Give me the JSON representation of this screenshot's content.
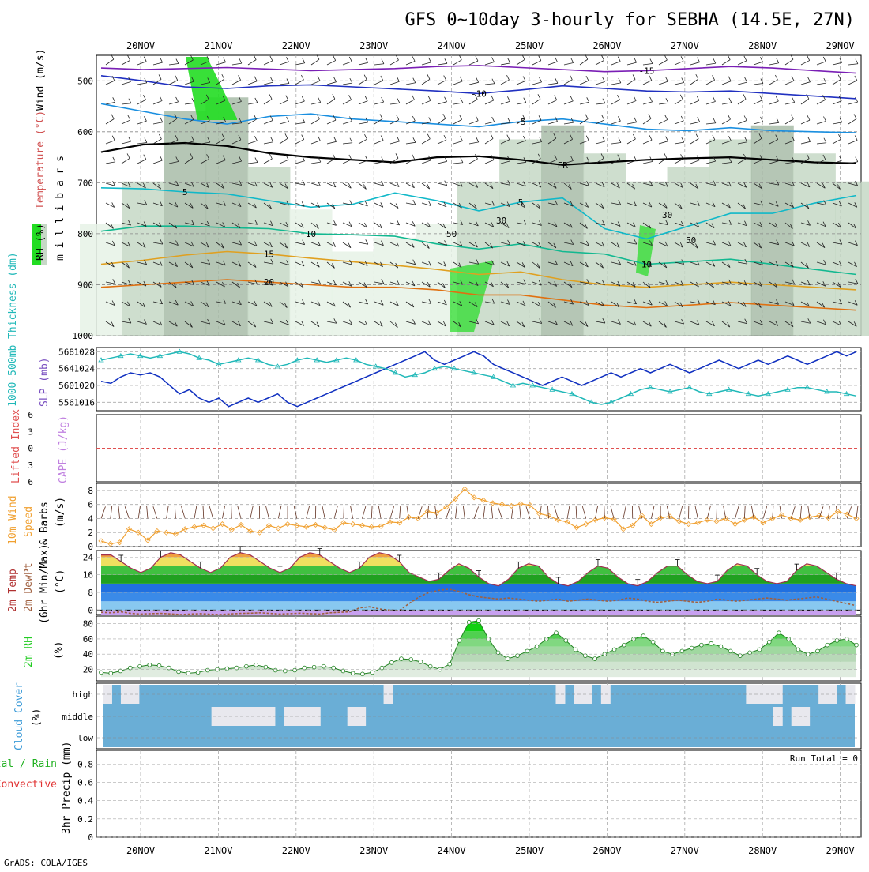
{
  "title": "GFS 0~10day 3-hourly for SEBHA (14.5E, 27N)",
  "footer": "GrADS: COLA/IGES",
  "run_total": "Run Total = 0",
  "colors": {
    "rh_light": "#e6f2e6",
    "rh_mid": "#c6d8c6",
    "rh_dark": "#a8bca8",
    "rh_green": "#22dd22",
    "temp_m15": "#7a1fb5",
    "temp_m10": "#2030c0",
    "temp_m5": "#1a8fe0",
    "temp_fr": "#000000",
    "temp_5": "#10b8c8",
    "temp_10": "#12b890",
    "temp_15": "#e0a020",
    "temp_20": "#e07010",
    "temp_25": "#d0107a",
    "slp": "#1030c0",
    "thickness": "#20b8b8",
    "wind10": "#f0a030",
    "barb": "#603020",
    "rh2m": "#22cc22",
    "cloud_clear": "#6aaed6",
    "cloud_some": "#e8e8ee"
  },
  "chart_data": [
    {
      "type": "heatmap",
      "panel": "upper-air",
      "ylabels": [
        "RH (%)",
        "Temperature (°C)",
        "Wind (m/s)"
      ],
      "ylabel_inner": "m i l l i b a r s",
      "x": [
        "20NOV",
        "21NOV",
        "22NOV",
        "23NOV",
        "24NOV",
        "25NOV",
        "26NOV",
        "27NOV",
        "28NOV",
        "29NOV"
      ],
      "y_ticks": [
        500,
        600,
        700,
        800,
        900,
        1000
      ],
      "ylim": [
        1000,
        450
      ],
      "contour_labels": [
        "-15",
        "-10",
        "-5",
        "FR",
        "5",
        "10",
        "15",
        "20",
        "10",
        "30",
        "50"
      ],
      "isotherms": [
        {
          "name": "-15",
          "level_mb": [
            475,
            478,
            476,
            474,
            477,
            480,
            478,
            476,
            472,
            470,
            474,
            478,
            482,
            480,
            476,
            472,
            475,
            480,
            485
          ]
        },
        {
          "name": "-10",
          "level_mb": [
            490,
            500,
            512,
            515,
            510,
            508,
            512,
            516,
            520,
            525,
            518,
            510,
            515,
            520,
            522,
            520,
            525,
            530,
            535
          ]
        },
        {
          "name": "-5",
          "level_mb": [
            545,
            560,
            575,
            585,
            570,
            565,
            575,
            580,
            585,
            590,
            580,
            575,
            585,
            595,
            598,
            592,
            598,
            600,
            602
          ]
        },
        {
          "name": "FR",
          "level_mb": [
            640,
            625,
            622,
            628,
            642,
            650,
            655,
            660,
            650,
            648,
            655,
            665,
            660,
            655,
            652,
            650,
            655,
            660,
            662
          ]
        },
        {
          "name": "5",
          "level_mb": [
            710,
            712,
            718,
            722,
            735,
            748,
            742,
            720,
            735,
            755,
            738,
            730,
            790,
            810,
            785,
            760,
            760,
            740,
            725
          ]
        },
        {
          "name": "10",
          "level_mb": [
            795,
            785,
            785,
            788,
            790,
            800,
            802,
            805,
            820,
            830,
            820,
            835,
            840,
            860,
            855,
            850,
            860,
            870,
            880
          ]
        },
        {
          "name": "15",
          "level_mb": [
            860,
            852,
            842,
            835,
            840,
            848,
            855,
            862,
            870,
            880,
            875,
            890,
            900,
            905,
            900,
            895,
            900,
            905,
            910
          ]
        },
        {
          "name": "20",
          "level_mb": [
            905,
            900,
            895,
            890,
            895,
            900,
            905,
            905,
            910,
            920,
            920,
            930,
            940,
            945,
            940,
            935,
            940,
            945,
            950
          ]
        }
      ],
      "rh_columns": [
        40,
        55,
        80,
        85,
        60,
        45,
        30,
        35,
        40,
        55,
        70,
        75,
        65,
        55,
        60,
        70,
        75,
        65,
        55
      ]
    },
    {
      "type": "line",
      "panel": "thickness-slp",
      "ylabels": [
        "1000-500mb Thickness (dm)",
        "SLP (mb)"
      ],
      "y_ticks_left": [
        556,
        560,
        564,
        568
      ],
      "y_ticks_right": [
        1016,
        1020,
        1024,
        1028
      ],
      "ylim_left": [
        554,
        569
      ],
      "ylim_right": [
        1014,
        1029
      ],
      "series": [
        {
          "name": "SLP (mb)",
          "axis": "right",
          "values": [
            1021,
            1020.5,
            1022,
            1023,
            1022.5,
            1023,
            1022,
            1020,
            1018,
            1019,
            1017,
            1016,
            1017,
            1015,
            1016,
            1017,
            1016,
            1017,
            1018,
            1016,
            1015,
            1016,
            1017,
            1018,
            1019,
            1020,
            1021,
            1022,
            1023,
            1024,
            1025,
            1026,
            1027,
            1028,
            1026,
            1025,
            1026,
            1027,
            1028,
            1027,
            1025,
            1024,
            1023,
            1022,
            1021,
            1020,
            1021,
            1022,
            1021,
            1020,
            1021,
            1022,
            1023,
            1022,
            1023,
            1024,
            1023,
            1024,
            1025,
            1024,
            1023,
            1024,
            1025,
            1026,
            1025,
            1024,
            1025,
            1026,
            1025,
            1026,
            1027,
            1026,
            1025,
            1026,
            1027,
            1028,
            1027,
            1028
          ]
        },
        {
          "name": "1000-500mb Thickness (dm)",
          "axis": "left",
          "values": [
            566,
            566.5,
            567,
            567.5,
            567,
            566.5,
            567,
            567.5,
            568,
            567.5,
            566.5,
            566,
            565,
            565.5,
            566,
            566.5,
            566,
            565,
            564.5,
            565,
            566,
            566.5,
            566,
            565.5,
            566,
            566.5,
            566,
            565,
            564.5,
            564,
            563,
            562,
            562.5,
            563,
            564,
            564.5,
            564,
            563.5,
            563,
            562.5,
            562,
            561,
            560,
            560.5,
            560,
            559.5,
            559,
            558.5,
            558,
            557,
            556,
            555.5,
            556,
            557,
            558,
            559,
            559.5,
            559,
            558.5,
            559,
            559.5,
            558.5,
            558,
            558.5,
            559,
            558.5,
            558,
            557.5,
            558,
            558.5,
            559,
            559.5,
            559.5,
            559,
            558.5,
            558.5,
            558,
            557.5
          ]
        }
      ]
    },
    {
      "type": "line",
      "panel": "stability",
      "ylabels": [
        "Lifted Index",
        "CAPE (J/kg)"
      ],
      "y_ticks": [
        -6,
        -3,
        0,
        3,
        6
      ],
      "y_tick_text": [
        "6",
        "3",
        "0",
        "3",
        "6"
      ],
      "ylim": [
        -6,
        6
      ],
      "series": [
        {
          "name": "Lifted Index",
          "values": [
            0,
            0,
            0,
            0,
            0,
            0,
            0,
            0,
            0,
            0,
            0,
            0,
            0,
            0,
            0,
            0,
            0,
            0,
            0,
            0
          ]
        }
      ]
    },
    {
      "type": "line",
      "panel": "wind10",
      "ylabels": [
        "10m Wind",
        "Speed",
        "& Barbs",
        "(m/s)"
      ],
      "y_ticks": [
        0,
        2,
        4,
        6,
        8
      ],
      "ylim": [
        0,
        9
      ],
      "series": [
        {
          "name": "10m Wind Speed",
          "values": [
            0.8,
            0.4,
            0.6,
            2.5,
            2.0,
            0.9,
            2.2,
            2.0,
            1.8,
            2.5,
            2.8,
            3.0,
            2.6,
            3.2,
            2.4,
            3.1,
            2.2,
            2.0,
            3.0,
            2.6,
            3.2,
            3.0,
            2.8,
            3.1,
            2.7,
            2.4,
            3.4,
            3.2,
            3.0,
            2.8,
            2.9,
            3.5,
            3.4,
            4.2,
            4.0,
            5.0,
            4.8,
            5.6,
            6.8,
            8.2,
            7.0,
            6.6,
            6.2,
            6.0,
            5.8,
            6.1,
            5.9,
            4.7,
            4.4,
            3.8,
            3.5,
            2.7,
            3.2,
            3.8,
            4.1,
            3.9,
            2.5,
            3.0,
            4.4,
            3.2,
            4.1,
            4.3,
            3.6,
            3.2,
            3.4,
            3.8,
            3.6,
            4.0,
            3.2,
            3.8,
            4.2,
            3.4,
            4.0,
            4.5,
            4.0,
            3.8,
            4.2,
            4.4,
            4.1,
            5.0,
            4.6,
            4.0
          ]
        }
      ]
    },
    {
      "type": "area",
      "panel": "temperature",
      "ylabels": [
        "2m Temp",
        "2m DewPt",
        "(6hr Min/Max)",
        "(°C)"
      ],
      "y_ticks": [
        0,
        8,
        16,
        24
      ],
      "ylim": [
        -2,
        27
      ],
      "series": [
        {
          "name": "2m Temp",
          "values": [
            25,
            25,
            22,
            19,
            17,
            19,
            24,
            26,
            25,
            22,
            19,
            17,
            19,
            24,
            26,
            25,
            22,
            19,
            17,
            19,
            24,
            26,
            25,
            22,
            19,
            17,
            19,
            24,
            26,
            25,
            22,
            17,
            15,
            13,
            14,
            18,
            21,
            19,
            15,
            12,
            11,
            14,
            19,
            21,
            20,
            15,
            12,
            11,
            13,
            17,
            20,
            19,
            15,
            12,
            11,
            13,
            17,
            20,
            20,
            16,
            13,
            12,
            13,
            18,
            21,
            20,
            16,
            13,
            12,
            13,
            18,
            21,
            20,
            17,
            14,
            12,
            11
          ]
        },
        {
          "name": "2m DewPt",
          "values": [
            -1,
            -1.2,
            -0.8,
            -1.5,
            -1.8,
            -1.6,
            -1.5,
            -1.7,
            -2,
            -1.8,
            -1.6,
            -1.9,
            -2,
            -1.7,
            -1.5,
            -1.4,
            -1.2,
            -1.5,
            -1.8,
            -1.6,
            -1.4,
            -1.6,
            -1.8,
            -1.2,
            -1.0,
            -0.8,
            1.0,
            1.5,
            0.5,
            0,
            -0.2,
            3,
            6,
            8,
            9,
            9.5,
            8.5,
            7,
            6,
            5.5,
            5,
            5.5,
            5,
            4.5,
            4,
            4.5,
            5,
            4,
            4.5,
            5,
            4.5,
            4,
            4.5,
            5.5,
            5,
            4,
            3.5,
            4,
            4.5,
            4,
            3.5,
            4,
            5,
            4.5,
            4,
            4.5,
            5,
            5.5,
            5,
            4.5,
            5,
            5.5,
            6,
            5,
            4,
            3,
            2
          ]
        }
      ]
    },
    {
      "type": "area",
      "panel": "rh2m",
      "ylabels": [
        "2m RH",
        "(%)"
      ],
      "y_ticks": [
        20,
        40,
        60,
        80
      ],
      "ylim": [
        5,
        90
      ],
      "series": [
        {
          "name": "2m RH",
          "values": [
            16,
            15,
            18,
            22,
            24,
            26,
            25,
            22,
            17,
            15,
            16,
            19,
            20,
            21,
            22,
            24,
            26,
            23,
            19,
            18,
            19,
            22,
            23,
            24,
            22,
            18,
            15,
            14,
            16,
            22,
            29,
            34,
            33,
            30,
            24,
            20,
            27,
            58,
            82,
            84,
            60,
            42,
            34,
            38,
            44,
            50,
            60,
            68,
            58,
            46,
            38,
            34,
            40,
            46,
            52,
            60,
            64,
            56,
            44,
            40,
            44,
            48,
            52,
            54,
            50,
            44,
            38,
            42,
            46,
            56,
            68,
            60,
            46,
            40,
            44,
            52,
            58,
            60,
            52
          ]
        }
      ]
    },
    {
      "type": "heatmap",
      "panel": "cloud",
      "ylabels": [
        "Cloud Cover",
        "(%)"
      ],
      "row_labels": [
        "high",
        "middle",
        "low"
      ],
      "high": [
        1,
        0,
        1,
        1,
        0,
        0,
        0,
        0,
        0,
        0,
        0,
        0,
        0,
        0,
        0,
        0,
        0,
        0,
        0,
        0,
        0,
        0,
        0,
        0,
        0,
        0,
        0,
        0,
        0,
        0,
        0,
        1,
        0,
        0,
        0,
        0,
        0,
        0,
        0,
        0,
        0,
        0,
        0,
        0,
        0,
        0,
        0,
        0,
        0,
        0,
        1,
        0,
        1,
        1,
        0,
        1,
        0,
        0,
        0,
        0,
        0,
        0,
        0,
        0,
        0,
        0,
        0,
        0,
        0,
        0,
        0,
        1,
        1,
        1,
        1,
        0,
        0,
        0,
        0,
        1,
        1,
        0,
        1
      ],
      "middle": [
        0,
        0,
        0,
        0,
        0,
        0,
        0,
        0,
        0,
        0,
        0,
        0,
        1,
        1,
        1,
        1,
        1,
        1,
        1,
        0,
        1,
        1,
        1,
        1,
        0,
        0,
        0,
        1,
        1,
        0,
        0,
        0,
        0,
        0,
        0,
        0,
        0,
        0,
        0,
        0,
        0,
        0,
        0,
        0,
        0,
        0,
        0,
        0,
        0,
        0,
        0,
        0,
        0,
        0,
        0,
        0,
        0,
        0,
        0,
        0,
        0,
        0,
        0,
        0,
        0,
        0,
        0,
        0,
        0,
        0,
        0,
        0,
        0,
        0,
        1,
        0,
        1,
        1,
        0,
        0,
        0,
        0,
        0
      ],
      "low": [
        0,
        0,
        0,
        0,
        0,
        0,
        0,
        0,
        0,
        0,
        0,
        0,
        0,
        0,
        0,
        0,
        0,
        0,
        0,
        0,
        0,
        0,
        0,
        0,
        0,
        0,
        0,
        0,
        0,
        0,
        0,
        0,
        0,
        0,
        0,
        0,
        0,
        0,
        0,
        0,
        0,
        0,
        0,
        0,
        0,
        0,
        0,
        0,
        0,
        0,
        0,
        0,
        0,
        0,
        0,
        0,
        0,
        0,
        0,
        0,
        0,
        0,
        0,
        0,
        0,
        0,
        0,
        0,
        0,
        0,
        0,
        0,
        0,
        0,
        0,
        0,
        0,
        0,
        0,
        0,
        0,
        0,
        0
      ]
    },
    {
      "type": "bar",
      "panel": "precip",
      "ylabels": [
        "Total / Rain",
        "Convective",
        "3hr Precip (mm)"
      ],
      "y_ticks": [
        0,
        0.2,
        0.4,
        0.6,
        0.8
      ],
      "ylim": [
        0,
        0.95
      ],
      "values": [
        0,
        0,
        0,
        0,
        0,
        0,
        0,
        0,
        0,
        0
      ]
    }
  ]
}
